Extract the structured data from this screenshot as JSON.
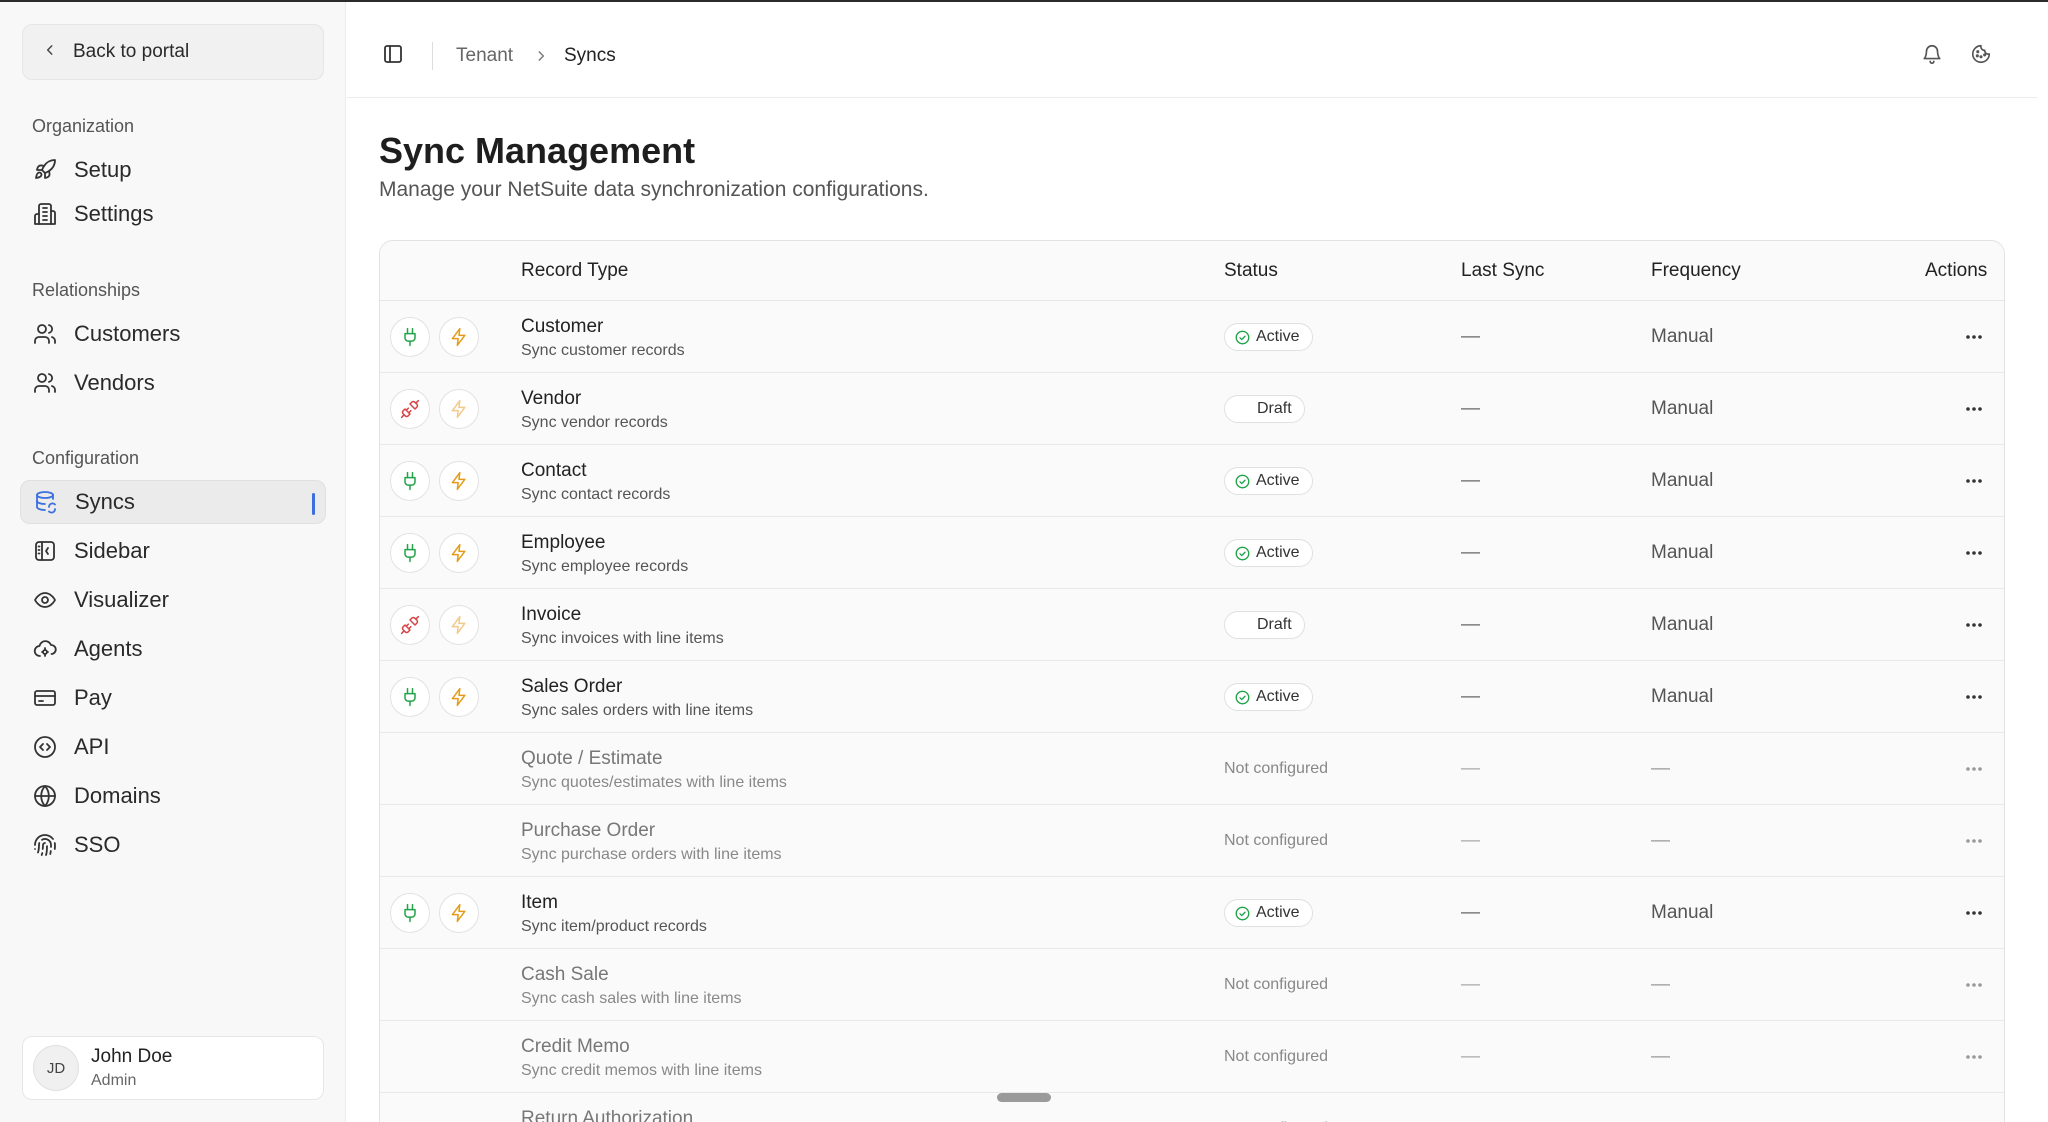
{
  "sidebar": {
    "back_label": "Back to portal",
    "groups": [
      {
        "title": "Organization",
        "items": [
          {
            "label": "Setup",
            "icon": "rocket-icon"
          },
          {
            "label": "Settings",
            "icon": "building-icon"
          }
        ]
      },
      {
        "title": "Relationships",
        "items": [
          {
            "label": "Customers",
            "icon": "users-icon"
          },
          {
            "label": "Vendors",
            "icon": "users-icon"
          }
        ]
      },
      {
        "title": "Configuration",
        "items": [
          {
            "label": "Syncs",
            "icon": "database-sync-icon",
            "active": true
          },
          {
            "label": "Sidebar",
            "icon": "panel-icon"
          },
          {
            "label": "Visualizer",
            "icon": "eye-icon"
          },
          {
            "label": "Agents",
            "icon": "cloud-agent-icon"
          },
          {
            "label": "Pay",
            "icon": "credit-card-icon"
          },
          {
            "label": "API",
            "icon": "code-icon"
          },
          {
            "label": "Domains",
            "icon": "globe-icon"
          },
          {
            "label": "SSO",
            "icon": "fingerprint-icon"
          }
        ]
      }
    ],
    "user": {
      "initials": "JD",
      "name": "John Doe",
      "role": "Admin"
    }
  },
  "header": {
    "breadcrumb": {
      "parent": "Tenant",
      "current": "Syncs"
    },
    "icons": [
      "sidebar-toggle-icon",
      "bell-icon",
      "cookie-icon"
    ]
  },
  "page": {
    "title": "Sync Management",
    "subtitle": "Manage your NetSuite data synchronization configurations."
  },
  "table": {
    "columns": {
      "record_type": "Record Type",
      "status": "Status",
      "last_sync": "Last Sync",
      "frequency": "Frequency",
      "actions": "Actions"
    },
    "rows": [
      {
        "name": "Customer",
        "desc": "Sync customer records",
        "state": "active",
        "status": "Active",
        "last_sync": "—",
        "frequency": "Manual"
      },
      {
        "name": "Vendor",
        "desc": "Sync vendor records",
        "state": "draft",
        "status": "Draft",
        "last_sync": "—",
        "frequency": "Manual"
      },
      {
        "name": "Contact",
        "desc": "Sync contact records",
        "state": "active",
        "status": "Active",
        "last_sync": "—",
        "frequency": "Manual"
      },
      {
        "name": "Employee",
        "desc": "Sync employee records",
        "state": "active",
        "status": "Active",
        "last_sync": "—",
        "frequency": "Manual"
      },
      {
        "name": "Invoice",
        "desc": "Sync invoices with line items",
        "state": "draft",
        "status": "Draft",
        "last_sync": "—",
        "frequency": "Manual"
      },
      {
        "name": "Sales Order",
        "desc": "Sync sales orders with line items",
        "state": "active",
        "status": "Active",
        "last_sync": "—",
        "frequency": "Manual"
      },
      {
        "name": "Quote / Estimate",
        "desc": "Sync quotes/estimates with line items",
        "state": "none",
        "status": "Not configured",
        "last_sync": "—",
        "frequency": "—"
      },
      {
        "name": "Purchase Order",
        "desc": "Sync purchase orders with line items",
        "state": "none",
        "status": "Not configured",
        "last_sync": "—",
        "frequency": "—"
      },
      {
        "name": "Item",
        "desc": "Sync item/product records",
        "state": "active",
        "status": "Active",
        "last_sync": "—",
        "frequency": "Manual"
      },
      {
        "name": "Cash Sale",
        "desc": "Sync cash sales with line items",
        "state": "none",
        "status": "Not configured",
        "last_sync": "—",
        "frequency": "—"
      },
      {
        "name": "Credit Memo",
        "desc": "Sync credit memos with line items",
        "state": "none",
        "status": "Not configured",
        "last_sync": "—",
        "frequency": "—"
      },
      {
        "name": "Return Authorization",
        "desc": "",
        "state": "none",
        "status": "Not configured",
        "last_sync": "—",
        "frequency": "—"
      }
    ]
  },
  "colors": {
    "accent": "#3b6fe0",
    "active_green": "#22a34a",
    "bolt_orange": "#e69a18",
    "disconnect_red": "#d64545"
  }
}
